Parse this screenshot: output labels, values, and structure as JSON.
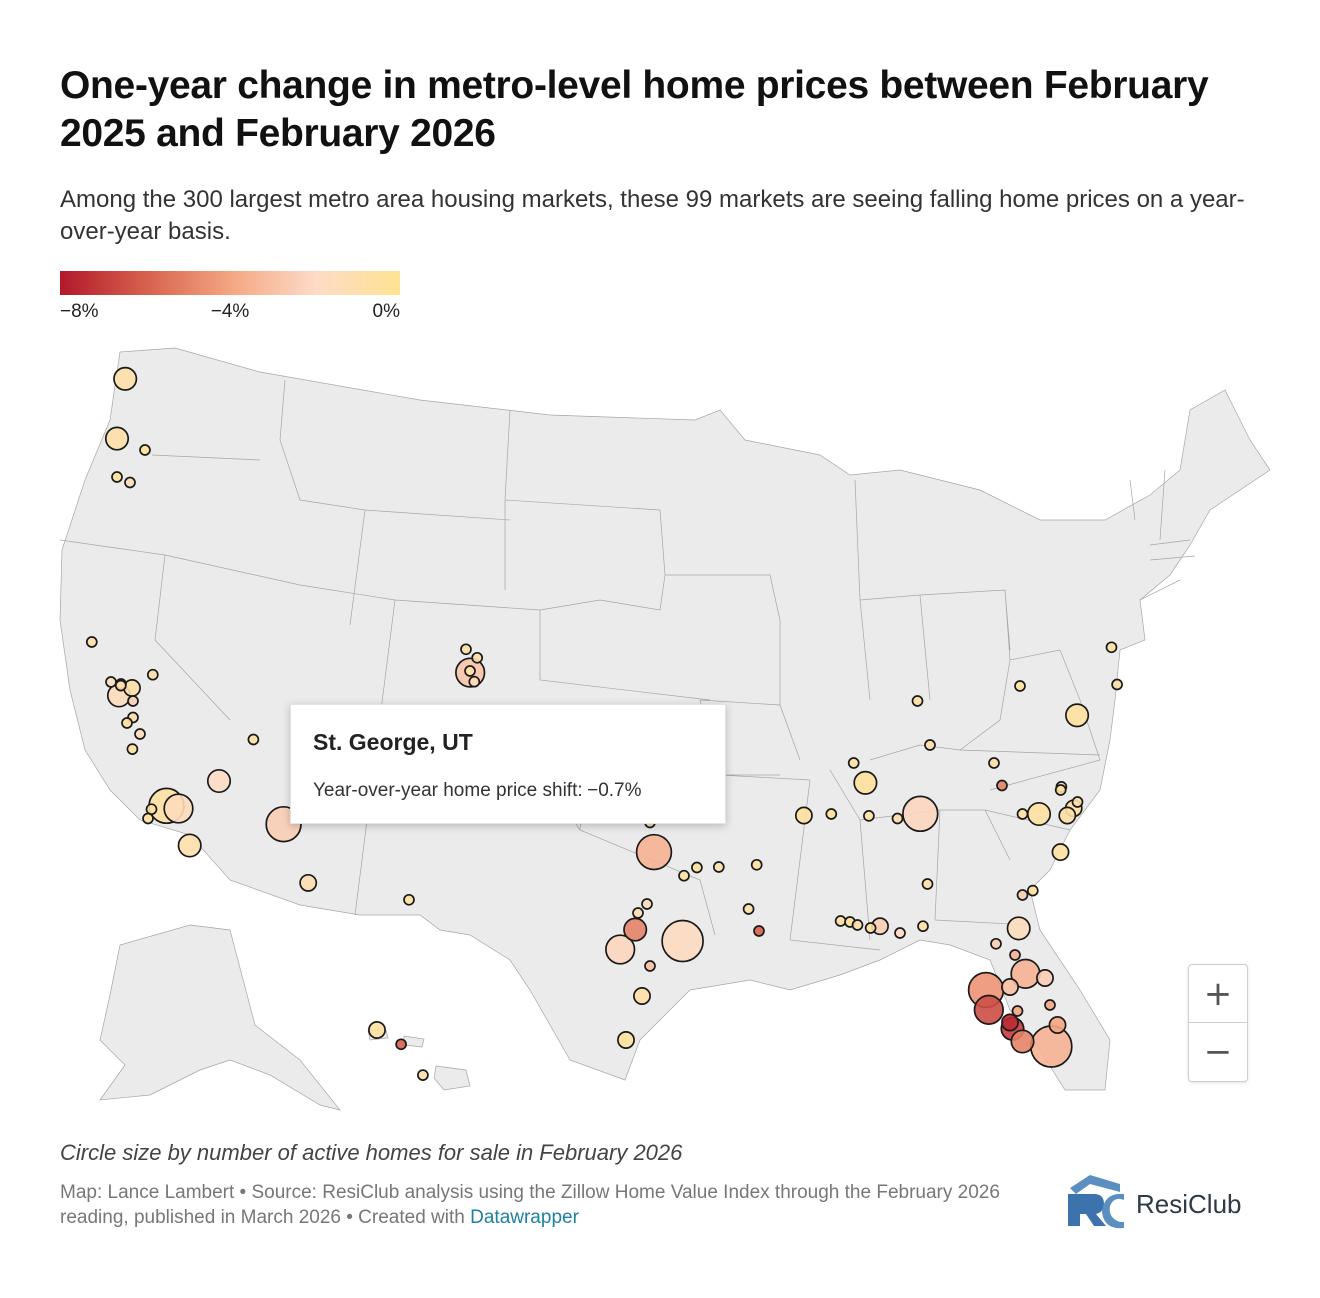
{
  "title": "One-year change in metro-level home prices between February 2025 and February 2026",
  "subtitle": "Among the 300 largest metro area housing markets, these 99 markets are seeing falling home prices on a year-over-year basis.",
  "legend": {
    "ticks": [
      "−8%",
      "−4%",
      "0%"
    ],
    "colors": [
      "#b2182b",
      "#d6604d",
      "#f4a582",
      "#fddbc7",
      "#fee391"
    ]
  },
  "tooltip": {
    "title": "St. George, UT",
    "label": "Year-over-year home price shift:",
    "value": "−0.7%"
  },
  "zoom": {
    "plus": "+",
    "minus": "−"
  },
  "note": "Circle size by number of active homes for sale in February 2026",
  "credits": {
    "text": "Map: Lance Lambert • Source: ResiClub analysis using the Zillow Home Value Index through the February 2026 reading, published in March 2026 • Created with",
    "link": "Datawrapper"
  },
  "logo": {
    "name": "ResiClub",
    "mark": "RC"
  },
  "colors": {
    "bubble_stroke": "#1a1a1a",
    "land": "#ebebeb",
    "state_border": "#a6a6a6",
    "accent": "#1d81a2"
  },
  "chart_data": {
    "type": "bubble-map",
    "title": "One-year change in metro-level home prices between February 2025 and February 2026",
    "value_label": "Year-over-year home price shift (%)",
    "size_label": "Active homes for sale, February 2026 (relative)",
    "color_scale": {
      "domain": [
        -8,
        0
      ],
      "colors": [
        "#b2182b",
        "#d6604d",
        "#f4a582",
        "#fddbc7",
        "#fee391"
      ]
    },
    "points": [
      {
        "lat": 48.75,
        "lon": -122.48,
        "change": -0.9,
        "size": 3
      },
      {
        "lat": 47.04,
        "lon": -122.9,
        "change": -0.8,
        "size": 3
      },
      {
        "lat": 46.6,
        "lon": -120.5,
        "change": -0.2,
        "size": 1
      },
      {
        "lat": 45.52,
        "lon": -122.9,
        "change": -0.3,
        "size": 1
      },
      {
        "lat": 45.3,
        "lon": -122.0,
        "change": -1.5,
        "size": 1
      },
      {
        "lat": 40.8,
        "lon": -124.16,
        "change": -1.0,
        "size": 1
      },
      {
        "lat": 39.53,
        "lon": -119.81,
        "change": -0.8,
        "size": 1
      },
      {
        "lat": 38.8,
        "lon": -123.2,
        "change": -1.5,
        "size": 1
      },
      {
        "lat": 38.6,
        "lon": -122.7,
        "change": -2.0,
        "size": 1
      },
      {
        "lat": 38.44,
        "lon": -122.71,
        "change": -1.0,
        "size": 1
      },
      {
        "lat": 38.2,
        "lon": -121.8,
        "change": -0.8,
        "size": 2
      },
      {
        "lat": 37.9,
        "lon": -122.8,
        "change": -1.5,
        "size": 3
      },
      {
        "lat": 37.8,
        "lon": -121.7,
        "change": -2.5,
        "size": 1
      },
      {
        "lat": 37.5,
        "lon": -121.7,
        "change": -1.0,
        "size": 1
      },
      {
        "lat": 37.4,
        "lon": -122.3,
        "change": -0.3,
        "size": 1
      },
      {
        "lat": 37.2,
        "lon": -121.0,
        "change": -1.5,
        "size": 1
      },
      {
        "lat": 36.91,
        "lon": -121.76,
        "change": -0.6,
        "size": 1
      },
      {
        "lat": 36.2,
        "lon": -115.6,
        "change": -2.0,
        "size": 3
      },
      {
        "lat": 37.1,
        "lon": -113.58,
        "change": -0.7,
        "size": 1
      },
      {
        "lat": 34.9,
        "lon": -120.2,
        "change": -0.5,
        "size": 1
      },
      {
        "lat": 34.28,
        "lon": -119.9,
        "change": -0.4,
        "size": 1
      },
      {
        "lat": 34.05,
        "lon": -118.9,
        "change": -0.6,
        "size": 5
      },
      {
        "lat": 33.9,
        "lon": -118.1,
        "change": -1.5,
        "size": 4
      },
      {
        "lat": 32.9,
        "lon": -117.4,
        "change": -1.0,
        "size": 3
      },
      {
        "lat": 33.45,
        "lon": -112.07,
        "change": -2.5,
        "size": 5
      },
      {
        "lat": 32.22,
        "lon": -110.97,
        "change": -1.2,
        "size": 2
      },
      {
        "lat": 40.59,
        "lon": -105.08,
        "change": -0.6,
        "size": 1
      },
      {
        "lat": 40.35,
        "lon": -104.7,
        "change": -1.0,
        "size": 1
      },
      {
        "lat": 39.9,
        "lon": -105.0,
        "change": -0.8,
        "size": 1
      },
      {
        "lat": 39.74,
        "lon": -104.99,
        "change": -2.8,
        "size": 4
      },
      {
        "lat": 38.83,
        "lon": -104.82,
        "change": -1.5,
        "size": 1
      },
      {
        "lat": 31.76,
        "lon": -106.49,
        "change": -0.5,
        "size": 1
      },
      {
        "lat": 33.5,
        "lon": -97.0,
        "change": -0.5,
        "size": 1
      },
      {
        "lat": 32.78,
        "lon": -96.8,
        "change": -3.5,
        "size": 5
      },
      {
        "lat": 32.35,
        "lon": -95.3,
        "change": -0.8,
        "size": 1
      },
      {
        "lat": 32.5,
        "lon": -94.7,
        "change": -0.3,
        "size": 1
      },
      {
        "lat": 31.55,
        "lon": -97.15,
        "change": -1.5,
        "size": 1
      },
      {
        "lat": 31.1,
        "lon": -97.6,
        "change": -1.2,
        "size": 1
      },
      {
        "lat": 30.27,
        "lon": -97.74,
        "change": -5.0,
        "size": 3
      },
      {
        "lat": 29.76,
        "lon": -95.37,
        "change": -1.8,
        "size": 6
      },
      {
        "lat": 29.42,
        "lon": -98.49,
        "change": -2.2,
        "size": 4
      },
      {
        "lat": 28.8,
        "lon": -97.0,
        "change": -3.0,
        "size": 1
      },
      {
        "lat": 27.8,
        "lon": -97.4,
        "change": -0.8,
        "size": 2
      },
      {
        "lat": 26.2,
        "lon": -98.2,
        "change": -0.5,
        "size": 2
      },
      {
        "lat": 32.51,
        "lon": -93.75,
        "change": -1.0,
        "size": 1
      },
      {
        "lat": 32.55,
        "lon": -92.1,
        "change": -0.5,
        "size": 1
      },
      {
        "lat": 31.3,
        "lon": -92.45,
        "change": -0.7,
        "size": 1
      },
      {
        "lat": 30.2,
        "lon": -92.0,
        "change": -6.0,
        "size": 1
      },
      {
        "lat": 35.15,
        "lon": -90.05,
        "change": -0.5,
        "size": 2
      },
      {
        "lat": 35.2,
        "lon": -88.6,
        "change": -0.3,
        "size": 1
      },
      {
        "lat": 36.6,
        "lon": -87.4,
        "change": -0.6,
        "size": 1
      },
      {
        "lat": 36.16,
        "lon": -86.78,
        "change": -0.4,
        "size": 3
      },
      {
        "lat": 34.73,
        "lon": -86.59,
        "change": -0.7,
        "size": 1
      },
      {
        "lat": 35.05,
        "lon": -85.3,
        "change": -1.0,
        "size": 1
      },
      {
        "lat": 33.75,
        "lon": -84.39,
        "change": -2.2,
        "size": 5
      },
      {
        "lat": 32.2,
        "lon": -84.1,
        "change": -1.0,
        "size": 1
      },
      {
        "lat": 30.7,
        "lon": -88.1,
        "change": -0.8,
        "size": 1
      },
      {
        "lat": 30.65,
        "lon": -87.6,
        "change": -0.3,
        "size": 1
      },
      {
        "lat": 30.5,
        "lon": -87.2,
        "change": -0.8,
        "size": 1
      },
      {
        "lat": 30.35,
        "lon": -86.5,
        "change": -0.6,
        "size": 1
      },
      {
        "lat": 30.44,
        "lon": -86.0,
        "change": -2.5,
        "size": 2
      },
      {
        "lat": 30.1,
        "lon": -85.2,
        "change": -2.0,
        "size": 1
      },
      {
        "lat": 30.44,
        "lon": -84.28,
        "change": -0.7,
        "size": 1
      },
      {
        "lat": 30.33,
        "lon": -81.65,
        "change": -1.5,
        "size": 3
      },
      {
        "lat": 29.65,
        "lon": -82.35,
        "change": -2.5,
        "size": 1
      },
      {
        "lat": 29.2,
        "lon": -81.8,
        "change": -3.5,
        "size": 1
      },
      {
        "lat": 28.54,
        "lon": -81.38,
        "change": -3.5,
        "size": 4
      },
      {
        "lat": 28.4,
        "lon": -80.6,
        "change": -2.5,
        "size": 2
      },
      {
        "lat": 28.1,
        "lon": -82.0,
        "change": -3.0,
        "size": 2
      },
      {
        "lat": 28.0,
        "lon": -82.6,
        "change": -4.5,
        "size": 5
      },
      {
        "lat": 27.5,
        "lon": -80.4,
        "change": -4.0,
        "size": 1
      },
      {
        "lat": 27.3,
        "lon": -81.7,
        "change": -4.0,
        "size": 1
      },
      {
        "lat": 27.34,
        "lon": -82.53,
        "change": -6.5,
        "size": 4
      },
      {
        "lat": 26.9,
        "lon": -82.0,
        "change": -7.5,
        "size": 2
      },
      {
        "lat": 26.65,
        "lon": -81.9,
        "change": -7.0,
        "size": 3
      },
      {
        "lat": 26.8,
        "lon": -80.1,
        "change": -4.0,
        "size": 2
      },
      {
        "lat": 26.14,
        "lon": -81.5,
        "change": -5.0,
        "size": 3
      },
      {
        "lat": 25.9,
        "lon": -80.35,
        "change": -3.5,
        "size": 6
      },
      {
        "lat": 37.54,
        "lon": -77.44,
        "change": -0.5,
        "size": 3
      },
      {
        "lat": 38.55,
        "lon": -75.35,
        "change": -0.8,
        "size": 1
      },
      {
        "lat": 40.65,
        "lon": -75.6,
        "change": -0.7,
        "size": 1
      },
      {
        "lat": 38.4,
        "lon": -81.6,
        "change": -0.3,
        "size": 1
      },
      {
        "lat": 37.8,
        "lon": -84.5,
        "change": -0.5,
        "size": 1
      },
      {
        "lat": 37.0,
        "lon": -84.0,
        "change": -1.0,
        "size": 1
      },
      {
        "lat": 36.6,
        "lon": -82.4,
        "change": -0.8,
        "size": 1
      },
      {
        "lat": 36.07,
        "lon": -79.79,
        "change": -1.5,
        "size": 1
      },
      {
        "lat": 36.0,
        "lon": -79.9,
        "change": -0.6,
        "size": 1
      },
      {
        "lat": 36.1,
        "lon": -82.2,
        "change": -5.0,
        "size": 1
      },
      {
        "lat": 35.6,
        "lon": -77.37,
        "change": -0.9,
        "size": 1
      },
      {
        "lat": 35.2,
        "lon": -80.84,
        "change": -0.6,
        "size": 3
      },
      {
        "lat": 34.22,
        "lon": -77.94,
        "change": -0.5,
        "size": 2
      },
      {
        "lat": 34.6,
        "lon": -81.5,
        "change": -0.7,
        "size": 1
      },
      {
        "lat": 33.7,
        "lon": -78.9,
        "change": -0.8,
        "size": 2
      },
      {
        "lat": 32.78,
        "lon": -79.93,
        "change": -0.6,
        "size": 2
      },
      {
        "lat": 32.08,
        "lon": -81.09,
        "change": -0.3,
        "size": 1
      },
      {
        "lat": 32.0,
        "lon": -81.5,
        "change": -2.5,
        "size": 1
      },
      {
        "lat": 21.31,
        "lon": -157.86,
        "change": -0.6,
        "size": 2
      },
      {
        "lat": 20.8,
        "lon": -156.4,
        "change": -6.0,
        "size": 1
      },
      {
        "lat": 19.7,
        "lon": -155.08,
        "change": -1.0,
        "size": 1
      }
    ]
  }
}
